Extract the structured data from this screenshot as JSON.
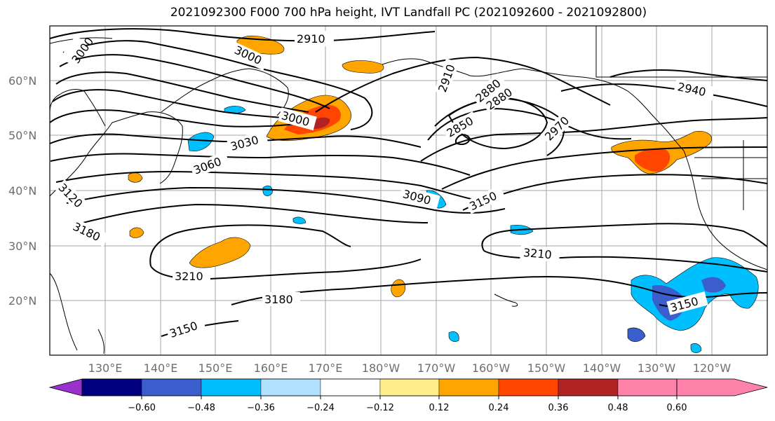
{
  "title": "2021092300 F000 700 hPa height, IVT Landfall PC (2021092600 - 2021092800)",
  "map": {
    "latitude_labels": [
      "60°N",
      "50°N",
      "40°N",
      "30°N",
      "20°N"
    ],
    "longitude_labels": [
      "130°E",
      "140°E",
      "150°E",
      "160°E",
      "170°E",
      "180°W",
      "170°W",
      "160°W",
      "150°W",
      "140°W",
      "130°W",
      "120°W"
    ],
    "contour_labels": [
      "2910",
      "3000",
      "3000",
      "3000",
      "2910",
      "2880",
      "2880",
      "2850",
      "2970",
      "2940",
      "3030",
      "3060",
      "3090",
      "3150",
      "3120",
      "3180",
      "3210",
      "3210",
      "3180",
      "3150",
      "3150"
    ],
    "shading_colors": {
      "purple": "#9932cc",
      "navy": "#000080",
      "royal": "#3a5fcd",
      "sky": "#00bfff",
      "pale_sky": "#b0e2ff",
      "white": "#ffffff",
      "yellow": "#ffec8b",
      "orange": "#ffa500",
      "red_orange": "#ff4500",
      "dark_red": "#b22222",
      "pink": "#ff82ab"
    }
  },
  "colorbar": {
    "colors": [
      "#9932cc",
      "#000080",
      "#3a5fcd",
      "#00bfff",
      "#b0e2ff",
      "#ffffff",
      "#ffec8b",
      "#ffa500",
      "#ff4500",
      "#b22222",
      "#ff82ab"
    ],
    "ticks": [
      "−0.60",
      "−0.48",
      "−0.36",
      "−0.24",
      "−0.12",
      "0.12",
      "0.24",
      "0.36",
      "0.48",
      "0.60"
    ]
  }
}
